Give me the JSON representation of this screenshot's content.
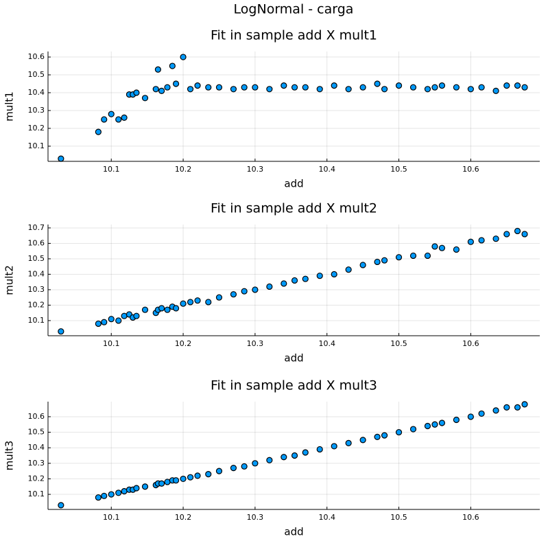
{
  "title": "LogNormal -  carga",
  "chart_data": [
    {
      "type": "scatter",
      "title": "Fit in sample add X mult1",
      "xlabel": "add",
      "ylabel": "mult1",
      "color": "#009afa",
      "grid": true,
      "x": [
        10.03,
        10.082,
        10.09,
        10.1,
        10.11,
        10.118,
        10.125,
        10.13,
        10.135,
        10.147,
        10.162,
        10.165,
        10.17,
        10.178,
        10.185,
        10.19,
        10.2,
        10.21,
        10.22,
        10.235,
        10.25,
        10.27,
        10.285,
        10.3,
        10.32,
        10.34,
        10.355,
        10.37,
        10.39,
        10.41,
        10.43,
        10.45,
        10.47,
        10.48,
        10.5,
        10.52,
        10.54,
        10.55,
        10.56,
        10.58,
        10.6,
        10.615,
        10.635,
        10.65,
        10.665,
        10.675
      ],
      "values": [
        10.03,
        10.18,
        10.25,
        10.28,
        10.25,
        10.26,
        10.39,
        10.39,
        10.4,
        10.37,
        10.42,
        10.53,
        10.41,
        10.43,
        10.55,
        10.45,
        10.6,
        10.42,
        10.44,
        10.43,
        10.43,
        10.42,
        10.43,
        10.43,
        10.42,
        10.44,
        10.43,
        10.43,
        10.42,
        10.44,
        10.42,
        10.43,
        10.45,
        10.42,
        10.44,
        10.43,
        10.42,
        10.43,
        10.44,
        10.43,
        10.42,
        10.43,
        10.41,
        10.44,
        10.44,
        10.43
      ],
      "xlim": [
        10.012,
        10.696
      ],
      "xticks": [
        10.1,
        10.2,
        10.3,
        10.4,
        10.5,
        10.6
      ],
      "ylim": [
        10.015,
        10.631
      ],
      "yticks": [
        10.1,
        10.2,
        10.3,
        10.4,
        10.5,
        10.6
      ]
    },
    {
      "type": "scatter",
      "title": "Fit in sample add X mult2",
      "xlabel": "add",
      "ylabel": "mult2",
      "color": "#009afa",
      "grid": true,
      "x": [
        10.03,
        10.082,
        10.09,
        10.1,
        10.11,
        10.118,
        10.125,
        10.13,
        10.135,
        10.147,
        10.162,
        10.165,
        10.17,
        10.178,
        10.185,
        10.19,
        10.2,
        10.21,
        10.22,
        10.235,
        10.25,
        10.27,
        10.285,
        10.3,
        10.32,
        10.34,
        10.355,
        10.37,
        10.39,
        10.41,
        10.43,
        10.45,
        10.47,
        10.48,
        10.5,
        10.52,
        10.54,
        10.55,
        10.56,
        10.58,
        10.6,
        10.615,
        10.635,
        10.65,
        10.665,
        10.675
      ],
      "values": [
        10.03,
        10.08,
        10.09,
        10.11,
        10.1,
        10.13,
        10.14,
        10.12,
        10.13,
        10.17,
        10.15,
        10.17,
        10.18,
        10.17,
        10.19,
        10.18,
        10.21,
        10.22,
        10.23,
        10.22,
        10.25,
        10.27,
        10.29,
        10.3,
        10.32,
        10.34,
        10.36,
        10.37,
        10.39,
        10.4,
        10.43,
        10.46,
        10.48,
        10.49,
        10.51,
        10.52,
        10.52,
        10.58,
        10.57,
        10.56,
        10.61,
        10.62,
        10.63,
        10.66,
        10.68,
        10.66
      ],
      "xlim": [
        10.012,
        10.696
      ],
      "xticks": [
        10.1,
        10.2,
        10.3,
        10.4,
        10.5,
        10.6
      ],
      "ylim": [
        10.002,
        10.722
      ],
      "yticks": [
        10.1,
        10.2,
        10.3,
        10.4,
        10.5,
        10.6,
        10.7
      ]
    },
    {
      "type": "scatter",
      "title": "Fit in sample add X mult3",
      "xlabel": "add",
      "ylabel": "mult3",
      "color": "#009afa",
      "grid": true,
      "x": [
        10.03,
        10.082,
        10.09,
        10.1,
        10.11,
        10.118,
        10.125,
        10.13,
        10.135,
        10.147,
        10.162,
        10.165,
        10.17,
        10.178,
        10.185,
        10.19,
        10.2,
        10.21,
        10.22,
        10.235,
        10.25,
        10.27,
        10.285,
        10.3,
        10.32,
        10.34,
        10.355,
        10.37,
        10.39,
        10.41,
        10.43,
        10.45,
        10.47,
        10.48,
        10.5,
        10.52,
        10.54,
        10.55,
        10.56,
        10.58,
        10.6,
        10.615,
        10.635,
        10.65,
        10.665,
        10.675
      ],
      "values": [
        10.03,
        10.08,
        10.09,
        10.1,
        10.11,
        10.12,
        10.13,
        10.13,
        10.14,
        10.15,
        10.16,
        10.17,
        10.17,
        10.18,
        10.19,
        10.19,
        10.2,
        10.21,
        10.22,
        10.23,
        10.25,
        10.27,
        10.28,
        10.3,
        10.32,
        10.34,
        10.35,
        10.37,
        10.39,
        10.41,
        10.43,
        10.45,
        10.47,
        10.48,
        10.5,
        10.52,
        10.54,
        10.55,
        10.56,
        10.58,
        10.6,
        10.62,
        10.64,
        10.66,
        10.66,
        10.68
      ],
      "xlim": [
        10.012,
        10.696
      ],
      "xticks": [
        10.1,
        10.2,
        10.3,
        10.4,
        10.5,
        10.6
      ],
      "ylim": [
        10.003,
        10.697
      ],
      "yticks": [
        10.1,
        10.2,
        10.3,
        10.4,
        10.5,
        10.6
      ]
    }
  ]
}
